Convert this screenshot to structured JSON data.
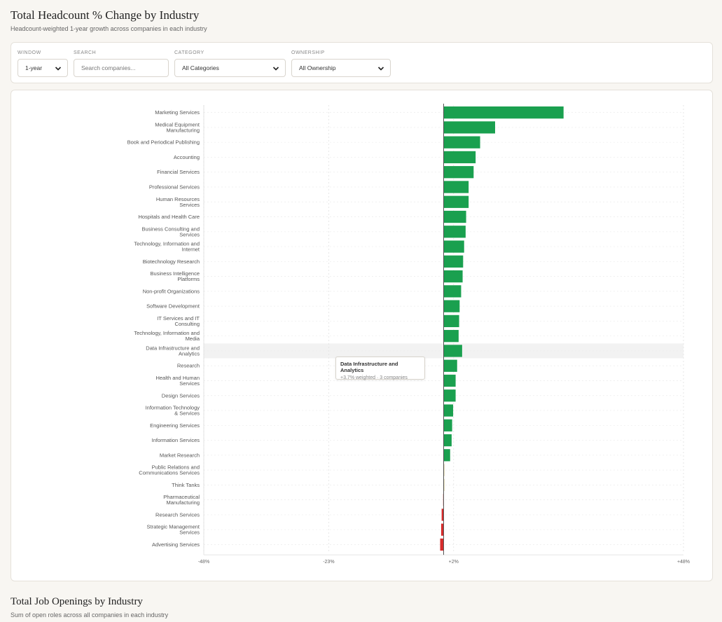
{
  "header": {
    "title": "Total Headcount % Change by Industry",
    "subtitle": "Headcount-weighted 1-year growth across companies in each industry"
  },
  "filters": {
    "window": {
      "label": "WINDOW",
      "value": "1-year"
    },
    "search": {
      "label": "SEARCH",
      "placeholder": "Search companies..."
    },
    "category": {
      "label": "CATEGORY",
      "value": "All Categories"
    },
    "ownership": {
      "label": "OWNERSHIP",
      "value": "All Ownership"
    }
  },
  "tooltip": {
    "title": "Data Infrastructure and Analytics",
    "detail": "+3.7% weighted · 3 companies"
  },
  "colors": {
    "positive": "#1aa04f",
    "negative": "#d62b2b",
    "neutral": "#b5a033",
    "highlight": "#f2f2f2"
  },
  "chart_data": {
    "type": "bar",
    "orientation": "horizontal",
    "categories": [
      "Marketing Services",
      "Medical Equipment Manufacturing",
      "Book and Periodical Publishing",
      "Accounting",
      "Financial Services",
      "Professional Services",
      "Human Resources Services",
      "Hospitals and Health Care",
      "Business Consulting and Services",
      "Technology, Information and Internet",
      "Biotechnology Research",
      "Business Intelligence Platforms",
      "Non-profit Organizations",
      "Software Development",
      "IT Services and IT Consulting",
      "Technology, Information and Media",
      "Data Infrastructure and Analytics",
      "Research",
      "Health and Human Services",
      "Design Services",
      "Information Technology & Services",
      "Engineering Services",
      "Information Services",
      "Market Research",
      "Public Relations and Communications Services",
      "Think Tanks",
      "Pharmaceutical Manufacturing",
      "Research Services",
      "Strategic Management Services",
      "Advertising Services"
    ],
    "category_lines": [
      [
        "Marketing Services"
      ],
      [
        "Medical Equipment",
        "Manufacturing"
      ],
      [
        "Book and Periodical Publishing"
      ],
      [
        "Accounting"
      ],
      [
        "Financial Services"
      ],
      [
        "Professional Services"
      ],
      [
        "Human Resources",
        "Services"
      ],
      [
        "Hospitals and Health Care"
      ],
      [
        "Business Consulting and",
        "Services"
      ],
      [
        "Technology, Information and",
        "Internet"
      ],
      [
        "Biotechnology Research"
      ],
      [
        "Business Intelligence",
        "Platforms"
      ],
      [
        "Non-profit Organizations"
      ],
      [
        "Software Development"
      ],
      [
        "IT Services and IT",
        "Consulting"
      ],
      [
        "Technology, Information and",
        "Media"
      ],
      [
        "Data Infrastructure and",
        "Analytics"
      ],
      [
        "Research"
      ],
      [
        "Health and Human",
        "Services"
      ],
      [
        "Design Services"
      ],
      [
        "Information Technology",
        "& Services"
      ],
      [
        "Engineering Services"
      ],
      [
        "Information Services"
      ],
      [
        "Market Research"
      ],
      [
        "Public Relations and",
        "Communications Services"
      ],
      [
        "Think Tanks"
      ],
      [
        "Pharmaceutical",
        "Manufacturing"
      ],
      [
        "Research Services"
      ],
      [
        "Strategic Management",
        "Services"
      ],
      [
        "Advertising Services"
      ]
    ],
    "values": [
      24.0,
      10.3,
      7.3,
      6.4,
      6.0,
      5.0,
      5.0,
      4.5,
      4.4,
      4.1,
      3.9,
      3.8,
      3.5,
      3.2,
      3.1,
      3.0,
      3.7,
      2.7,
      2.4,
      2.4,
      1.9,
      1.7,
      1.6,
      1.3,
      0.1,
      0.0,
      -0.1,
      -0.4,
      -0.5,
      -0.7
    ],
    "highlighted_category": "Data Infrastructure and Analytics",
    "xlim": [
      -48,
      48
    ],
    "xticks": [
      "-48%",
      "-23%",
      "+2%",
      "+48%"
    ],
    "xtick_values": [
      -48,
      -23,
      2,
      48
    ],
    "grid": true
  },
  "footer_section": {
    "title": "Total Job Openings by Industry",
    "subtitle": "Sum of open roles across all companies in each industry"
  }
}
